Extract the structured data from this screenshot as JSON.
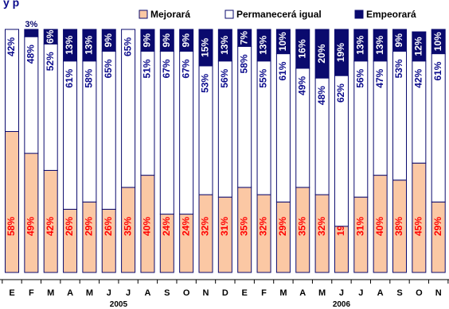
{
  "title_fragment": "y    p",
  "chart_data": {
    "type": "bar",
    "stacked": true,
    "categories": [
      "E",
      "F",
      "M",
      "A",
      "M",
      "J",
      "J",
      "A",
      "S",
      "O",
      "N",
      "D",
      "E",
      "F",
      "M",
      "A",
      "M",
      "J",
      "J",
      "A",
      "S",
      "O",
      "N"
    ],
    "year_labels": [
      {
        "text": "2005",
        "start_index": 0,
        "end_index": 11
      },
      {
        "text": "2006",
        "start_index": 12,
        "end_index": 22
      }
    ],
    "series": [
      {
        "name": "Mejorará",
        "color": "#fbc8a4",
        "label_color": "#ff0000",
        "values": [
          58,
          49,
          42,
          26,
          29,
          26,
          35,
          40,
          24,
          24,
          32,
          31,
          35,
          32,
          29,
          35,
          32,
          19,
          31,
          40,
          38,
          45,
          29
        ]
      },
      {
        "name": "Permanecerá igual",
        "color": "#ffffff",
        "label_color": "#0a0a8c",
        "values": [
          42,
          48,
          52,
          61,
          58,
          65,
          65,
          51,
          67,
          67,
          53,
          56,
          58,
          55,
          61,
          49,
          48,
          62,
          56,
          47,
          53,
          42,
          61
        ]
      },
      {
        "name": "Empeorará",
        "color": "#0a0a6e",
        "label_color": "#ffffff",
        "values": [
          0,
          3,
          6,
          13,
          13,
          9,
          0,
          9,
          9,
          9,
          15,
          13,
          7,
          13,
          10,
          16,
          20,
          19,
          13,
          13,
          9,
          12,
          10
        ]
      }
    ],
    "value_suffix": "%",
    "ylim": [
      0,
      100
    ],
    "legend_position": "top",
    "grid": false
  }
}
